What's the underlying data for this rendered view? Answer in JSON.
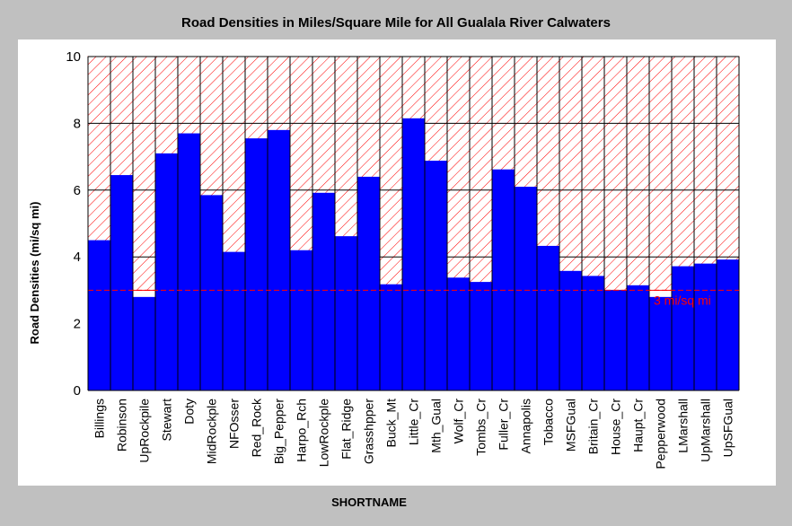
{
  "chart_data": {
    "type": "bar",
    "title": "Road Densities in Miles/Square Mile for All Gualala River Calwaters",
    "xlabel": "SHORTNAME",
    "ylabel": "Road Densities (mi/sq mi)",
    "ylim": [
      0,
      10
    ],
    "yticks": [
      0,
      2,
      4,
      6,
      8,
      10
    ],
    "grid": true,
    "categories": [
      "Billings",
      "Robinson",
      "UpRockpile",
      "Stewart",
      "Doty",
      "MidRockple",
      "NFOsser",
      "Red_Rock",
      "Big_Pepper",
      "Harpo_Rch",
      "LowRockple",
      "Flat_Ridge",
      "Grasshpper",
      "Buck_Mt",
      "Little_Cr",
      "Mth_Gual",
      "Wolf_Cr",
      "Tombs_Cr",
      "Fuller_Cr",
      "Annapolis",
      "Tobacco",
      "MSFGual",
      "Britain_Cr",
      "House_Cr",
      "Haupt_Cr",
      "Pepperwood",
      "LMarshall",
      "UpMarshall",
      "UpSFGual"
    ],
    "series": [
      {
        "color": "#0000ff",
        "values": [
          4.5,
          6.45,
          2.8,
          7.1,
          7.7,
          5.85,
          4.15,
          7.55,
          7.8,
          4.2,
          5.92,
          4.62,
          6.4,
          3.18,
          8.15,
          6.88,
          3.38,
          3.25,
          6.62,
          6.1,
          4.33,
          3.58,
          3.43,
          3.0,
          3.15,
          2.8,
          3.72,
          3.8,
          3.92
        ]
      }
    ],
    "threshold": {
      "value": 3,
      "label": "3 mi/sq mi",
      "color": "#ff0000",
      "hatch_above": true
    },
    "colors": {
      "bar": "#0000ff",
      "hatch": "#ff0000",
      "frame_bg": "#c0c0c0",
      "plot_bg": "#ffffff"
    }
  }
}
